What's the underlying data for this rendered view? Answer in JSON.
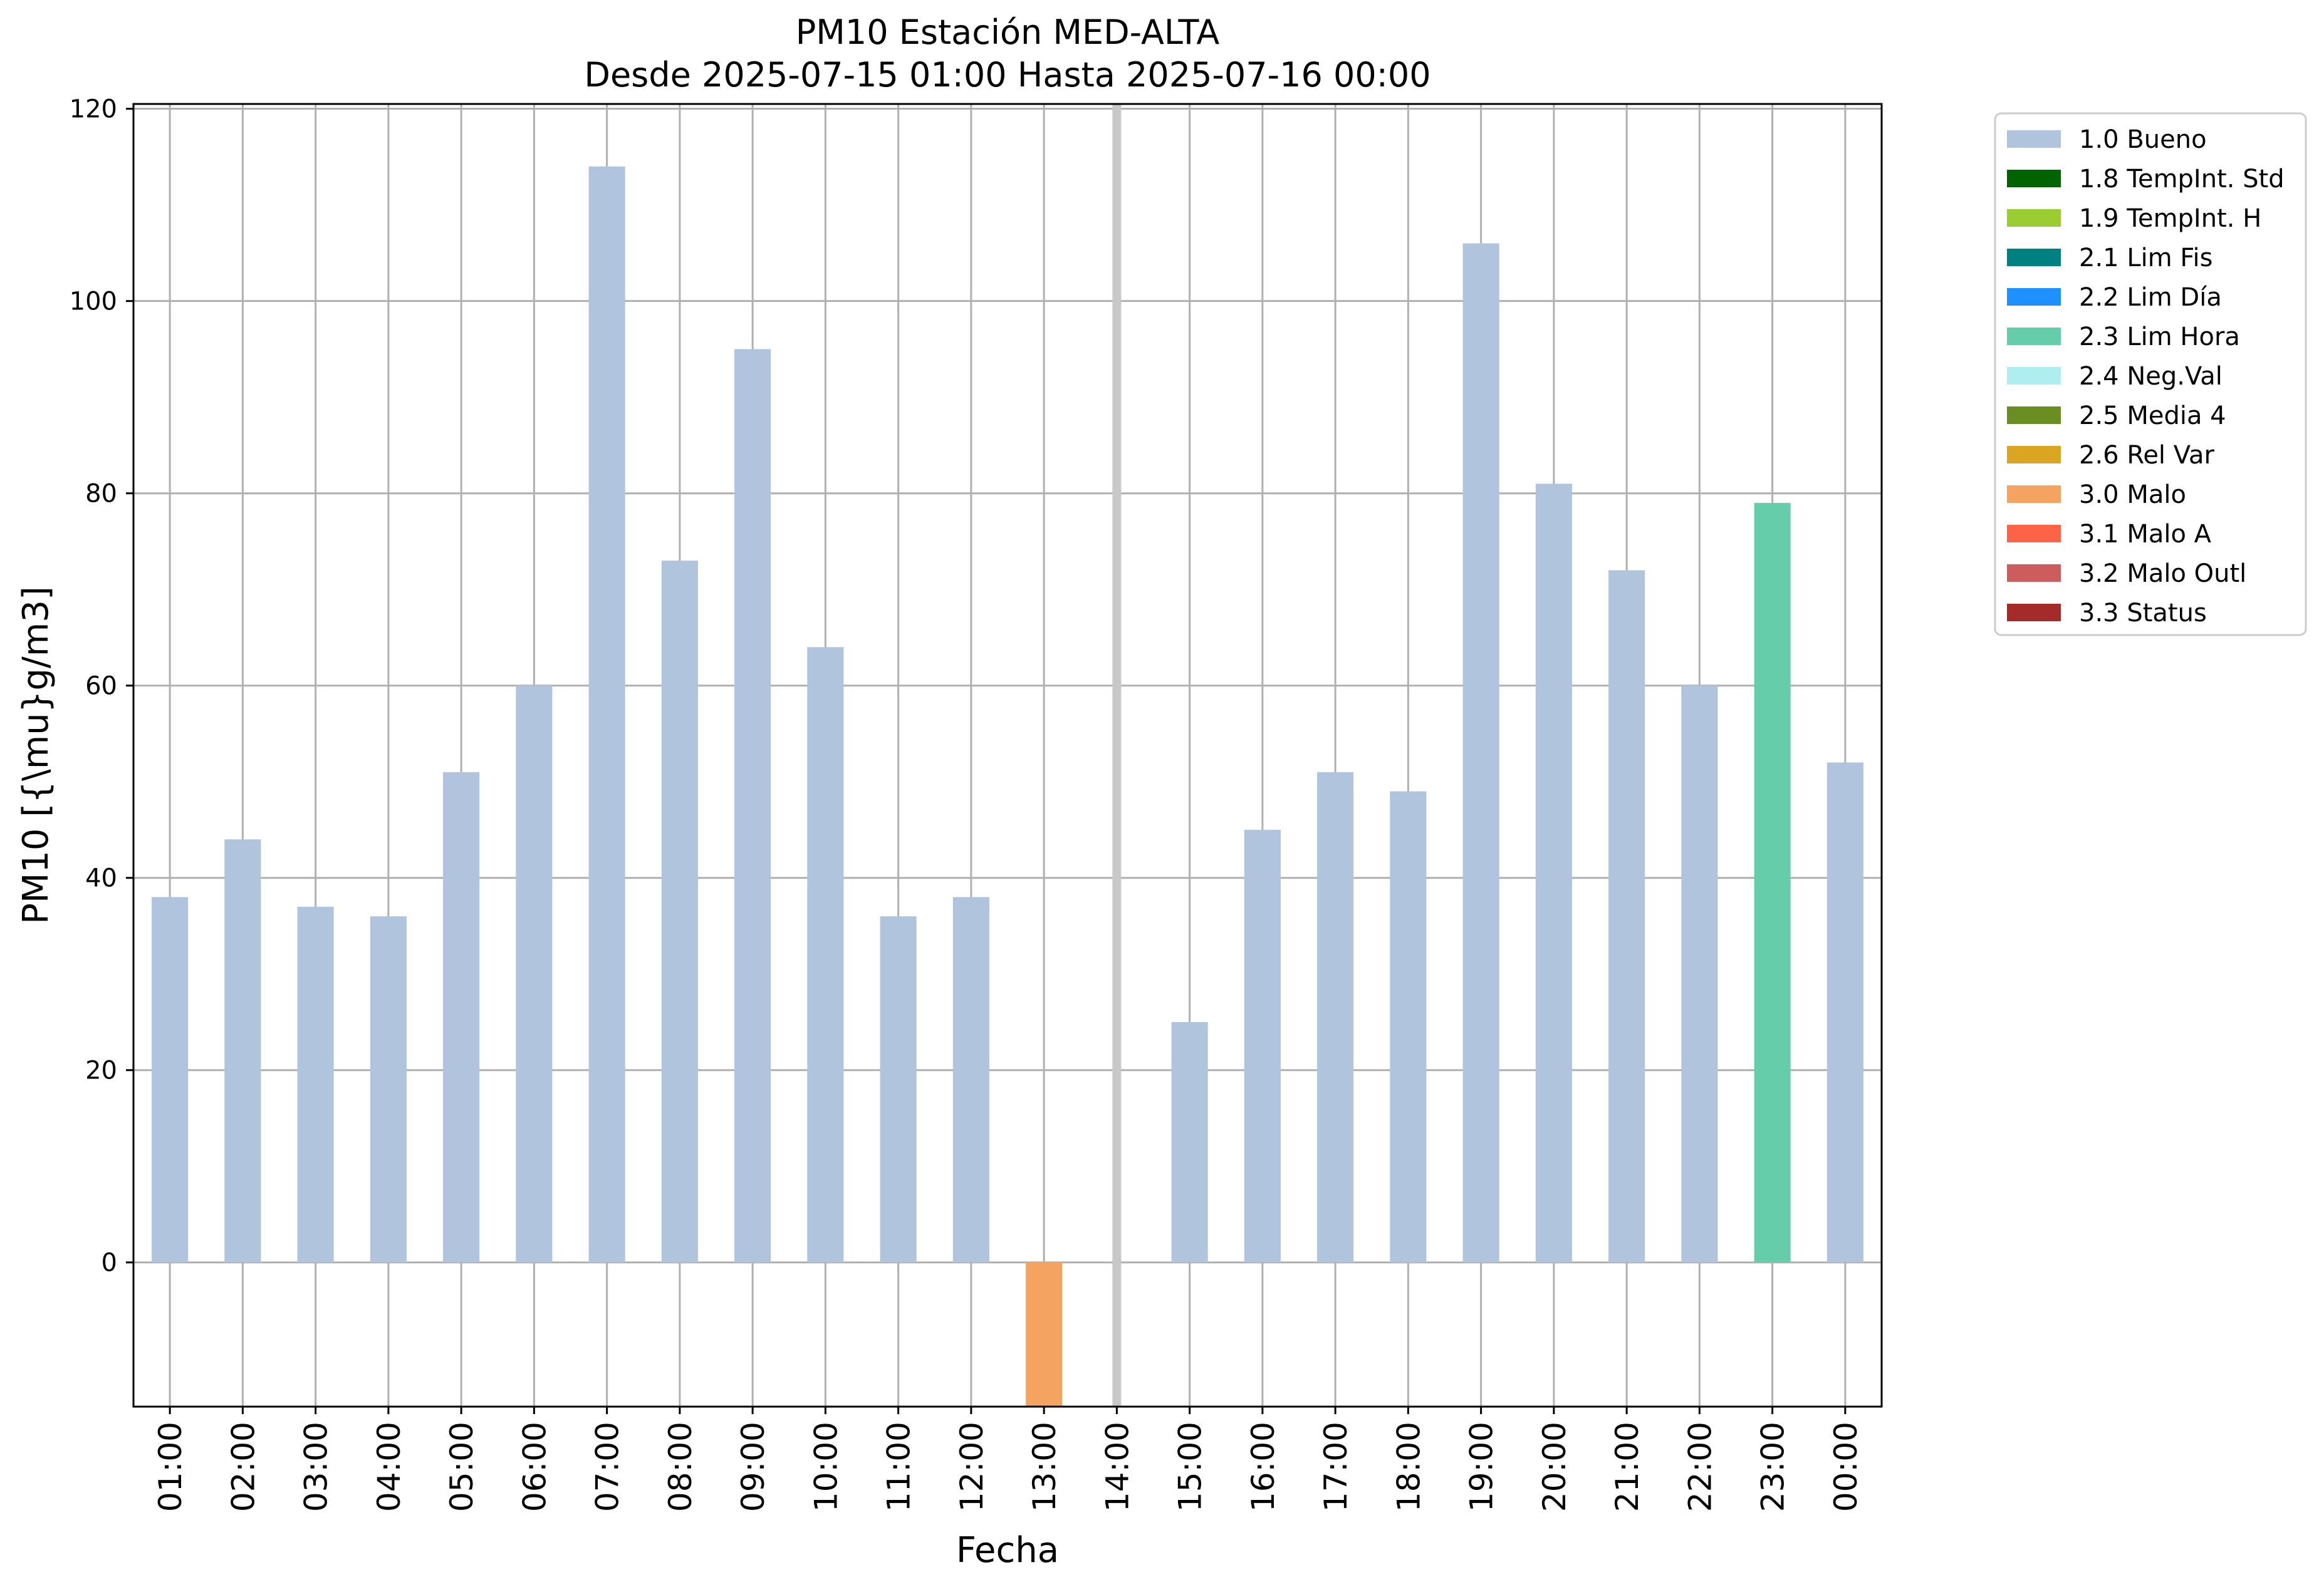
{
  "chart_data": {
    "type": "bar",
    "title": "PM10 Estación MED-ALTA",
    "subtitle": "Desde 2025-07-15 01:00 Hasta 2025-07-16 00:00",
    "xlabel": "Fecha",
    "ylabel": "PM10 [{\\mu}g/m3]",
    "ylim": [
      -15,
      120.5
    ],
    "yticks": [
      0,
      20,
      40,
      60,
      80,
      100,
      120
    ],
    "grid": true,
    "legend_position": "outside-top-right",
    "categories": [
      "01:00",
      "02:00",
      "03:00",
      "04:00",
      "05:00",
      "06:00",
      "07:00",
      "08:00",
      "09:00",
      "10:00",
      "11:00",
      "12:00",
      "13:00",
      "14:00",
      "15:00",
      "16:00",
      "17:00",
      "18:00",
      "19:00",
      "20:00",
      "21:00",
      "22:00",
      "23:00",
      "00:00"
    ],
    "values": [
      38,
      44,
      37,
      36,
      51,
      60,
      114,
      73,
      95,
      64,
      36,
      38,
      -15,
      null,
      25,
      45,
      51,
      49,
      106,
      81,
      72,
      60,
      79,
      52
    ],
    "flags": [
      "1.0 Bueno",
      "1.0 Bueno",
      "1.0 Bueno",
      "1.0 Bueno",
      "1.0 Bueno",
      "1.0 Bueno",
      "1.0 Bueno",
      "1.0 Bueno",
      "1.0 Bueno",
      "1.0 Bueno",
      "1.0 Bueno",
      "1.0 Bueno",
      "3.0 Malo",
      null,
      "1.0 Bueno",
      "1.0 Bueno",
      "1.0 Bueno",
      "1.0 Bueno",
      "1.0 Bueno",
      "1.0 Bueno",
      "1.0 Bueno",
      "1.0 Bueno",
      "2.3 Lim Hora",
      "1.0 Bueno"
    ],
    "missing_marker_index": 13,
    "missing_marker_color": "#c8c8c8",
    "legend": [
      {
        "label": "1.0 Bueno",
        "color": "#b0c4de"
      },
      {
        "label": "1.8 TempInt. Std",
        "color": "#006400"
      },
      {
        "label": "1.9 TempInt. H",
        "color": "#9acd32"
      },
      {
        "label": "2.1 Lim Fis",
        "color": "#008080"
      },
      {
        "label": "2.2 Lim Día",
        "color": "#1e90ff"
      },
      {
        "label": "2.3 Lim Hora",
        "color": "#66cdaa"
      },
      {
        "label": "2.4 Neg.Val",
        "color": "#afeeee"
      },
      {
        "label": "2.5 Media 4",
        "color": "#6b8e23"
      },
      {
        "label": "2.6 Rel Var",
        "color": "#daa520"
      },
      {
        "label": "3.0 Malo",
        "color": "#f4a460"
      },
      {
        "label": "3.1 Malo A",
        "color": "#ff6347"
      },
      {
        "label": "3.2 Malo Outl",
        "color": "#cd5c5c"
      },
      {
        "label": "3.3 Status",
        "color": "#a52a2a"
      }
    ]
  }
}
